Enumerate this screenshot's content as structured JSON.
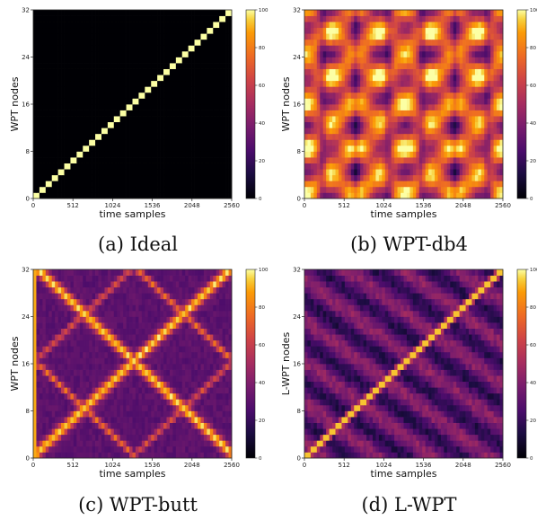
{
  "figure": {
    "colormap": "inferno"
  },
  "chart_data": [
    {
      "type": "heatmap",
      "pattern": "ideal-diagonal",
      "caption": "(a) Ideal",
      "xlabel": "time samples",
      "ylabel": "WPT nodes",
      "xlim": [
        0,
        2560
      ],
      "ylim": [
        0,
        32
      ],
      "xticks": [
        "0",
        "512",
        "1024",
        "1536",
        "2048",
        "2560"
      ],
      "yticks": [
        "0",
        "8",
        "16",
        "24",
        "32"
      ],
      "colorbar": {
        "min": 0,
        "max": 100,
        "ticks": [
          "0",
          "20",
          "40",
          "60",
          "80",
          "100"
        ]
      }
    },
    {
      "type": "heatmap",
      "pattern": "broad-butterfly",
      "caption": "(b) WPT-db4",
      "xlabel": "time samples",
      "ylabel": "WPT nodes",
      "xlim": [
        0,
        2560
      ],
      "ylim": [
        0,
        32
      ],
      "xticks": [
        "0",
        "512",
        "1024",
        "1536",
        "2048",
        "2560"
      ],
      "yticks": [
        "0",
        "8",
        "16",
        "24",
        "32"
      ],
      "colorbar": {
        "min": 0,
        "max": 100,
        "ticks": [
          "0",
          "20",
          "40",
          "60",
          "80",
          "100"
        ]
      }
    },
    {
      "type": "heatmap",
      "pattern": "fractal-x",
      "caption": "(c) WPT-butt",
      "xlabel": "time samples",
      "ylabel": "WPT nodes",
      "xlim": [
        0,
        2560
      ],
      "ylim": [
        0,
        32
      ],
      "xticks": [
        "0",
        "512",
        "1024",
        "1536",
        "2048",
        "2560"
      ],
      "yticks": [
        "0",
        "8",
        "16",
        "24",
        "32"
      ],
      "colorbar": {
        "min": 0,
        "max": 100,
        "ticks": [
          "0",
          "20",
          "40",
          "60",
          "80",
          "100"
        ]
      }
    },
    {
      "type": "heatmap",
      "pattern": "learned-diagonal",
      "caption": "(d) L-WPT",
      "xlabel": "time samples",
      "ylabel": "L-WPT nodes",
      "xlim": [
        0,
        2560
      ],
      "ylim": [
        0,
        32
      ],
      "xticks": [
        "0",
        "512",
        "1024",
        "1536",
        "2048",
        "2560"
      ],
      "yticks": [
        "0",
        "8",
        "16",
        "24",
        "32"
      ],
      "colorbar": {
        "min": 0,
        "max": 100,
        "ticks": [
          "0",
          "20",
          "40",
          "60",
          "80",
          "100"
        ]
      }
    }
  ]
}
